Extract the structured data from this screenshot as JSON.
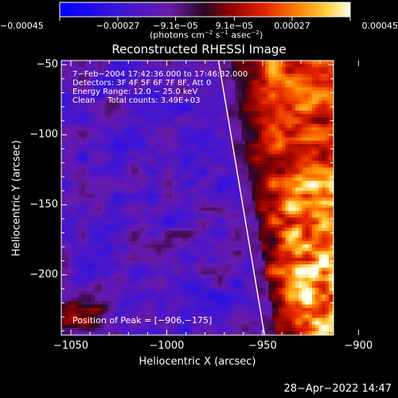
{
  "chart_data": {
    "type": "heatmap",
    "title": "Reconstructed RHESSI Image",
    "xlabel": "Heliocentric X (arcsec)",
    "ylabel": "Heliocentric Y (arcsec)",
    "xlim": [
      -1055,
      -913
    ],
    "ylim": [
      -243,
      -47
    ],
    "xticks": [
      -1050,
      -1000,
      -950,
      -900
    ],
    "xtick_labels": [
      "−1050",
      "−1000",
      "−950",
      "−900"
    ],
    "yticks": [
      -50,
      -100,
      -150,
      -200
    ],
    "ytick_labels": [
      "−50",
      "−100",
      "−150",
      "−200"
    ],
    "colorbar": {
      "range": [
        -0.00045,
        0.00045
      ],
      "ticks": [
        -0.00045,
        -0.00027,
        -9.1e-05,
        9.1e-05,
        0.00027,
        0.00045
      ],
      "tick_labels": [
        "−0.00045",
        "−0.00027",
        "−9.1e−05",
        "9.1e−05",
        "0.00027",
        "0.00045"
      ],
      "unit_label": "(photons cm",
      "unit_parts": [
        "(photons cm",
        "−2",
        " s",
        "−1",
        " asec",
        "−2",
        ")"
      ]
    },
    "annotations": [
      "7−Feb−2004 17:42:36.000 to 17:46:32.000",
      "Detectors: 3F 4F 5F 6F 7F 8F, Att 0",
      "Energy Range: 12.0 − 25.0 keV",
      "Clean     Total counts: 3.49E+03"
    ],
    "peak_label": "Position of Peak = [−906,−175]",
    "limb_line": {
      "x_top": -973,
      "y_top": -47,
      "x_bottom": -949,
      "y_bottom": -243
    }
  },
  "footer": {
    "timestamp": "28−Apr−2022 14:47"
  },
  "colors": {
    "background": "#000000",
    "text": "#ffffff"
  }
}
